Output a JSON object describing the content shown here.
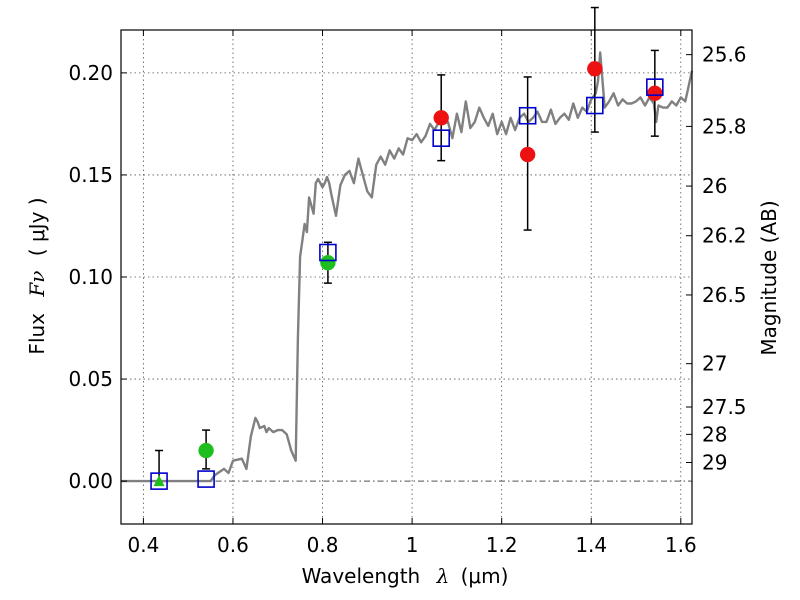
{
  "chart_data": {
    "type": "scatter",
    "xlabel_text": "Wavelength",
    "xlabel_var": "λ",
    "xlabel_unit": "(μm)",
    "ylabel_text": "Flux",
    "ylabel_var": "Fν",
    "ylabel_unit": "( μJy )",
    "y2label": "Magnitude (AB)",
    "xlim": [
      0.35,
      1.625
    ],
    "ylim": [
      -0.021,
      0.221
    ],
    "x_ticks": [
      0.4,
      0.6,
      0.8,
      1.0,
      1.2,
      1.4,
      1.6
    ],
    "x_tick_labels": [
      "0.4",
      "0.6",
      "0.8",
      "1",
      "1.2",
      "1.4",
      "1.6"
    ],
    "y_ticks": [
      0.0,
      0.05,
      0.1,
      0.15,
      0.2
    ],
    "y_tick_labels": [
      "0.00",
      "0.05",
      "0.10",
      "0.15",
      "0.20"
    ],
    "grid": true,
    "magnitude_ticks": [
      {
        "label": "25.6",
        "mag": 25.6
      },
      {
        "label": "25.8",
        "mag": 25.8
      },
      {
        "label": "26",
        "mag": 26.0
      },
      {
        "label": "26.2",
        "mag": 26.2
      },
      {
        "label": "26.5",
        "mag": 26.5
      },
      {
        "label": "27",
        "mag": 27.0
      },
      {
        "label": "27.5",
        "mag": 27.5
      },
      {
        "label": "28",
        "mag": 28.0
      },
      {
        "label": "29",
        "mag": 29.0
      }
    ],
    "colors": {
      "model": "#808080",
      "green": "#1fbe1f",
      "red": "#ee1111",
      "blue": "#0000cc",
      "error": "#000000",
      "grid": "#555555",
      "zero_line": "#555555"
    },
    "series": [
      {
        "name": "model SED",
        "kind": "line",
        "x": [
          0.35,
          0.55,
          0.56,
          0.58,
          0.59,
          0.6,
          0.62,
          0.63,
          0.64,
          0.65,
          0.655,
          0.66,
          0.67,
          0.675,
          0.68,
          0.69,
          0.7,
          0.71,
          0.72,
          0.73,
          0.74,
          0.745,
          0.75,
          0.755,
          0.76,
          0.765,
          0.77,
          0.78,
          0.785,
          0.79,
          0.8,
          0.805,
          0.81,
          0.815,
          0.82,
          0.83,
          0.84,
          0.85,
          0.86,
          0.87,
          0.88,
          0.89,
          0.9,
          0.91,
          0.92,
          0.93,
          0.94,
          0.95,
          0.96,
          0.97,
          0.98,
          0.99,
          1.0,
          1.01,
          1.02,
          1.03,
          1.04,
          1.05,
          1.06,
          1.07,
          1.08,
          1.09,
          1.1,
          1.11,
          1.12,
          1.13,
          1.14,
          1.15,
          1.16,
          1.17,
          1.18,
          1.19,
          1.2,
          1.21,
          1.22,
          1.23,
          1.24,
          1.25,
          1.26,
          1.27,
          1.28,
          1.29,
          1.3,
          1.31,
          1.32,
          1.33,
          1.34,
          1.35,
          1.36,
          1.37,
          1.38,
          1.39,
          1.4,
          1.41,
          1.415,
          1.42,
          1.43,
          1.44,
          1.45,
          1.46,
          1.47,
          1.48,
          1.49,
          1.5,
          1.51,
          1.52,
          1.53,
          1.54,
          1.545,
          1.55,
          1.56,
          1.57,
          1.58,
          1.59,
          1.6,
          1.61,
          1.625
        ],
        "y": [
          0.0,
          0.0,
          0.003,
          0.006,
          0.004,
          0.01,
          0.011,
          0.006,
          0.022,
          0.031,
          0.029,
          0.026,
          0.027,
          0.024,
          0.026,
          0.024,
          0.025,
          0.025,
          0.023,
          0.015,
          0.01,
          0.07,
          0.11,
          0.118,
          0.126,
          0.122,
          0.139,
          0.131,
          0.146,
          0.148,
          0.144,
          0.146,
          0.149,
          0.146,
          0.14,
          0.13,
          0.145,
          0.15,
          0.152,
          0.146,
          0.158,
          0.15,
          0.142,
          0.139,
          0.155,
          0.159,
          0.155,
          0.162,
          0.158,
          0.163,
          0.16,
          0.168,
          0.167,
          0.17,
          0.166,
          0.169,
          0.175,
          0.172,
          0.176,
          0.175,
          0.176,
          0.168,
          0.18,
          0.171,
          0.186,
          0.173,
          0.176,
          0.183,
          0.178,
          0.174,
          0.18,
          0.17,
          0.176,
          0.17,
          0.178,
          0.172,
          0.178,
          0.18,
          0.176,
          0.178,
          0.181,
          0.176,
          0.176,
          0.182,
          0.175,
          0.178,
          0.18,
          0.177,
          0.185,
          0.178,
          0.183,
          0.181,
          0.187,
          0.19,
          0.196,
          0.21,
          0.183,
          0.186,
          0.19,
          0.184,
          0.187,
          0.185,
          0.185,
          0.186,
          0.188,
          0.184,
          0.188,
          0.185,
          0.176,
          0.184,
          0.183,
          0.183,
          0.186,
          0.184,
          0.188,
          0.186,
          0.201
        ]
      },
      {
        "name": "green detections",
        "kind": "circle",
        "points": [
          {
            "x": 0.54,
            "y": 0.015,
            "err_lo": 0.009,
            "err_hi": 0.01
          },
          {
            "x": 0.812,
            "y": 0.107,
            "err_lo": 0.01,
            "err_hi": 0.01
          }
        ]
      },
      {
        "name": "green upper limit",
        "kind": "triangle",
        "points": [
          {
            "x": 0.435,
            "y": 0.0,
            "err_lo": 0.0,
            "err_hi": 0.015
          }
        ]
      },
      {
        "name": "red detections",
        "kind": "circle",
        "points": [
          {
            "x": 1.065,
            "y": 0.178,
            "err_lo": 0.021,
            "err_hi": 0.021
          },
          {
            "x": 1.258,
            "y": 0.16,
            "err_lo": 0.037,
            "err_hi": 0.038
          },
          {
            "x": 1.408,
            "y": 0.202,
            "err_lo": 0.031,
            "err_hi": 0.03
          },
          {
            "x": 1.542,
            "y": 0.19,
            "err_lo": 0.021,
            "err_hi": 0.021
          }
        ]
      },
      {
        "name": "model band flux",
        "kind": "square",
        "points": [
          {
            "x": 0.435,
            "y": 0.0
          },
          {
            "x": 0.54,
            "y": 0.001
          },
          {
            "x": 0.812,
            "y": 0.112
          },
          {
            "x": 1.065,
            "y": 0.168
          },
          {
            "x": 1.258,
            "y": 0.179
          },
          {
            "x": 1.408,
            "y": 0.184
          },
          {
            "x": 1.542,
            "y": 0.193
          }
        ]
      }
    ]
  }
}
